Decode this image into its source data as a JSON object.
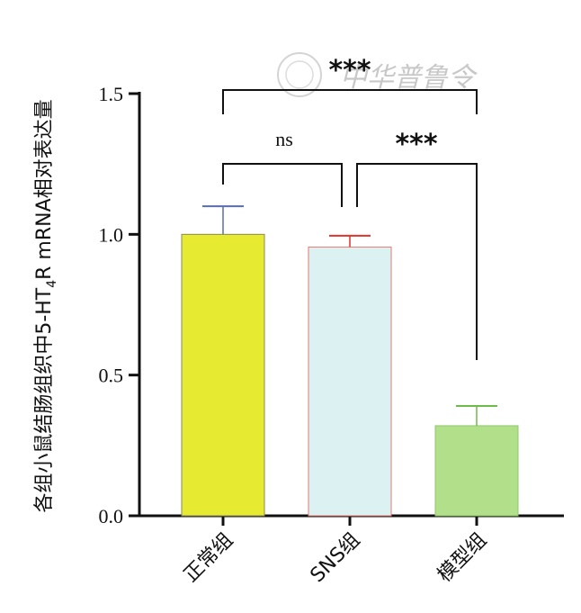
{
  "chart_data": {
    "type": "bar",
    "title": "",
    "ylabel_prefix": "各组小鼠结肠组织中5-HT",
    "ylabel_sub": "4",
    "ylabel_suffix": "R mRNA相对表达量",
    "xlabel": "",
    "categories": [
      "正常组",
      "SNS组",
      "模型组"
    ],
    "values": [
      1.0,
      0.955,
      0.32
    ],
    "errors": [
      0.1,
      0.04,
      0.07
    ],
    "bar_colors": [
      "#e6eb31",
      "#dcf1f1",
      "#b2e08a"
    ],
    "bar_edge_colors": [
      "#8a8a55",
      "#e27a72",
      "#8ec86a"
    ],
    "error_colors": [
      "#5b6bb0",
      "#e0332b",
      "#6dbb48"
    ],
    "ylim": [
      0,
      1.5
    ],
    "yticks": [
      "0.0",
      "0.5",
      "1.0",
      "1.5"
    ],
    "grid": false,
    "comparisons": [
      {
        "from": 0,
        "to": 1,
        "label": "ns"
      },
      {
        "from": 1,
        "to": 2,
        "label": "***"
      },
      {
        "from": 0,
        "to": 2,
        "label": "***"
      }
    ]
  },
  "watermark": {
    "text": "中华普鲁令"
  }
}
